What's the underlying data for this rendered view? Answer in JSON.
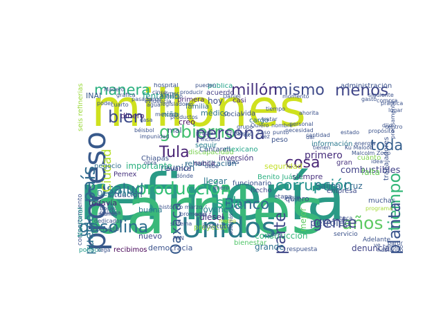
{
  "words": [
    {
      "text": "refinería",
      "color": "#2a9a86"
    },
    {
      "text": "barriles",
      "color": "#3ab87a"
    },
    {
      "text": "millones",
      "color": "#cfe11e"
    },
    {
      "text": "Unidos",
      "color": "#2b7a8a"
    },
    {
      "text": "proceso",
      "color": "#38598b"
    },
    {
      "text": "producción",
      "color": "#33bf75"
    },
    {
      "text": "gasolina",
      "color": "#2d6e8e"
    },
    {
      "text": "país",
      "color": "#2f6b8e"
    },
    {
      "text": "gobierno",
      "color": "#44bf70"
    },
    {
      "text": "persona",
      "color": "#414487"
    },
    {
      "text": "corrupción",
      "color": "#21908d"
    },
    {
      "text": "mismo",
      "color": "#3e4a89"
    },
    {
      "text": "menos",
      "color": "#404688"
    },
    {
      "text": "manera",
      "color": "#2ab07f"
    },
    {
      "text": "millón",
      "color": "#46327e"
    },
    {
      "text": "tiempo",
      "color": "#35b779"
    },
    {
      "text": "años",
      "color": "#5ec962"
    },
    {
      "text": "Banco",
      "color": "#31688e"
    },
    {
      "text": "gente",
      "color": "#404588"
    },
    {
      "text": "cosa",
      "color": "#482576"
    },
    {
      "text": "Tula",
      "color": "#482374"
    },
    {
      "text": "planta",
      "color": "#3a548c"
    },
    {
      "text": "salud",
      "color": "#2c728e"
    },
    {
      "text": "parte",
      "color": "#3f4788"
    },
    {
      "text": "bien",
      "color": "#3e4c8a"
    },
    {
      "text": "Ciudad",
      "color": "#b5de2b"
    },
    {
      "text": "Oaxaca",
      "color": "#375a8c"
    },
    {
      "text": "sólo",
      "color": "#22a884"
    },
    {
      "text": "toda",
      "color": "#355f8d"
    },
    {
      "text": "pueblo",
      "color": "#2c738e"
    },
    {
      "text": "petróleo",
      "color": "#3b528b"
    },
    {
      "text": "primero",
      "color": "#472d7b"
    },
    {
      "text": "fentanilo",
      "color": "#1f9e89"
    },
    {
      "text": "combustibles",
      "color": "#414287"
    },
    {
      "text": "reunión",
      "color": "#31668e"
    },
    {
      "text": "construcción",
      "color": "#35b779"
    },
    {
      "text": "Salina Cruz",
      "color": "#31688e"
    },
    {
      "text": "situación",
      "color": "#3b528b"
    },
    {
      "text": "todavía",
      "color": "#482878"
    },
    {
      "text": "importante",
      "color": "#2ab07f"
    },
    {
      "text": "Deer Park",
      "color": "#287c8e"
    },
    {
      "text": "niño",
      "color": "#26828e"
    },
    {
      "text": "creo",
      "color": "#471063"
    },
    {
      "text": "hoy",
      "color": "#3e4a89"
    },
    {
      "text": "médico",
      "color": "#2c728e"
    },
    {
      "text": "mal",
      "color": "#3b528b"
    },
    {
      "text": "dinero",
      "color": "#482475"
    },
    {
      "text": "Pemex",
      "color": "#46337e"
    },
    {
      "text": "INAI",
      "color": "#38598c"
    },
    {
      "text": "discapacidad",
      "color": "#7ad151"
    },
    {
      "text": "jóvenes",
      "color": "#26818e"
    },
    {
      "text": "diésel",
      "color": "#472c7a"
    },
    {
      "text": "proyecto",
      "color": "#8fd744"
    },
    {
      "text": "democracia",
      "color": "#3b528b"
    },
    {
      "text": "buena",
      "color": "#2a788e"
    },
    {
      "text": "nuevo",
      "color": "#3e4989"
    },
    {
      "text": "recibimos",
      "color": "#440154"
    },
    {
      "text": "político",
      "color": "#1f9a8a"
    },
    {
      "text": "denuncia",
      "color": "#414487"
    },
    {
      "text": "grande",
      "color": "#2d708e"
    },
    {
      "text": "mejor",
      "color": "#5ec962"
    },
    {
      "text": "quiero",
      "color": "#3b528b"
    },
    {
      "text": "seguridad",
      "color": "#c2df23"
    },
    {
      "text": "siempre",
      "color": "#472f7d"
    },
    {
      "text": "Benito Juárez",
      "color": "#29af7f"
    },
    {
      "text": "rehabilitación",
      "color": "#2e6d8e"
    },
    {
      "text": "inversión",
      "color": "#463480"
    },
    {
      "text": "avance",
      "color": "#433e85"
    },
    {
      "text": "llegar",
      "color": "#2a768e"
    },
    {
      "text": "hecho",
      "color": "#3f4788"
    },
    {
      "text": "seis refinerías",
      "color": "#9bd93c"
    },
    {
      "text": "empresa",
      "color": "#3e4a89"
    },
    {
      "text": "trabajadores",
      "color": "#3b528b"
    },
    {
      "text": "falta",
      "color": "#6ccd5a"
    },
    {
      "text": "Chiapas",
      "color": "#3b528b"
    },
    {
      "text": "familia",
      "color": "#31688e"
    },
    {
      "text": "primera",
      "color": "#482677"
    },
    {
      "text": "vida",
      "color": "#3b528b"
    },
    {
      "text": "casi",
      "color": "#482878"
    },
    {
      "text": "social",
      "color": "#3b528b"
    },
    {
      "text": "cargo",
      "color": "#2d708e"
    },
    {
      "text": "acuerdo",
      "color": "#433d84"
    },
    {
      "text": "pública",
      "color": "#1fa188"
    },
    {
      "text": "hospital",
      "color": "#3b528b"
    },
    {
      "text": "pueden",
      "color": "#3b528b"
    },
    {
      "text": "información",
      "color": "#2a788e"
    },
    {
      "text": "peso",
      "color": "#3b528b"
    },
    {
      "text": "mexicano",
      "color": "#20a486"
    },
    {
      "text": "Cantarell",
      "color": "#3b528b"
    },
    {
      "text": "seguir",
      "color": "#27808e"
    },
    {
      "text": "nunca",
      "color": "#482979"
    },
    {
      "text": "gas",
      "color": "#3b528b"
    },
    {
      "text": "gran",
      "color": "#46327e"
    },
    {
      "text": "cuánto",
      "color": "#7fd34e"
    },
    {
      "text": "funcionario",
      "color": "#3b528b"
    },
    {
      "text": "instituto",
      "color": "#3b528b"
    },
    {
      "text": "bienestar",
      "color": "#52c569"
    },
    {
      "text": "respuesta",
      "color": "#3b528b"
    },
    {
      "text": "servicio",
      "color": "#3b528b"
    },
    {
      "text": "Adelante",
      "color": "#3b528b"
    },
    {
      "text": "muchas",
      "color": "#3b528b"
    },
    {
      "text": "negocio",
      "color": "#2e6e8e"
    },
    {
      "text": "corrupto",
      "color": "#3b528b"
    },
    {
      "text": "comportamiento",
      "color": "#3b528b"
    },
    {
      "text": "Nacional",
      "color": "#1f968b"
    },
    {
      "text": "administración",
      "color": "#3b528b"
    },
    {
      "text": "dijo",
      "color": "#3b528b"
    },
    {
      "text": "propósito",
      "color": "#3b528b"
    },
    {
      "text": "centro",
      "color": "#3b528b"
    },
    {
      "text": "idea",
      "color": "#3b528b"
    },
    {
      "text": "programa",
      "color": "#a5db36"
    },
    {
      "text": "partir",
      "color": "#3b528b"
    },
    {
      "text": "cambio",
      "color": "#3b528b"
    },
    {
      "text": "hablando",
      "color": "#3b528b"
    },
    {
      "text": "precisamente",
      "color": "#3b528b"
    },
    {
      "text": "dar",
      "color": "#3b528b"
    },
    {
      "text": "producir",
      "color": "#3b528b"
    },
    {
      "text": "tarde",
      "color": "#3b528b"
    },
    {
      "text": "béisbol",
      "color": "#3b528b"
    },
    {
      "text": "crudo",
      "color": "#3b528b"
    },
    {
      "text": "tratar",
      "color": "#3b528b"
    },
    {
      "text": "Madero",
      "color": "#3b528b"
    },
    {
      "text": "poder",
      "color": "#3b528b"
    },
    {
      "text": "casa",
      "color": "#3b528b"
    },
    {
      "text": "punto",
      "color": "#3b528b"
    },
    {
      "text": "Malcolm Zoop",
      "color": "#3b528b"
    },
    {
      "text": "Ku Maloob",
      "color": "#3b528b"
    },
    {
      "text": "energía",
      "color": "#3b528b"
    },
    {
      "text": "ahorita",
      "color": "#3b528b"
    },
    {
      "text": "caso",
      "color": "#3b528b"
    },
    {
      "text": "etapa",
      "color": "#3b528b"
    },
    {
      "text": "medio",
      "color": "#bddf26"
    },
    {
      "text": "promedio",
      "color": "#3b528b"
    },
    {
      "text": "aquí",
      "color": "#3b528b"
    },
    {
      "text": "debe",
      "color": "#3b528b"
    },
    {
      "text": "incluso",
      "color": "#3b528b"
    },
    {
      "text": "PAN",
      "color": "#3b528b"
    },
    {
      "text": "sistema",
      "color": "#3b528b"
    },
    {
      "text": "histórico marzo",
      "color": "#3b528b"
    },
    {
      "text": "dónde",
      "color": "#3b528b"
    },
    {
      "text": "pasado",
      "color": "#3b528b"
    },
    {
      "text": "sigue",
      "color": "#3b528b"
    },
    {
      "text": "además",
      "color": "#3b528b"
    },
    {
      "text": "mundo",
      "color": "#3b528b"
    },
    {
      "text": "dedicados",
      "color": "#3b528b"
    },
    {
      "text": "legisladores",
      "color": "#3b528b"
    },
    {
      "text": "Bocas",
      "color": "#3b528b"
    },
    {
      "text": "palabra",
      "color": "#3b528b"
    },
    {
      "text": "llega",
      "color": "#3b528b"
    },
    {
      "text": "lugar",
      "color": "#3b528b"
    },
    {
      "text": "beca",
      "color": "#3b528b"
    },
    {
      "text": "viene",
      "color": "#3b528b"
    },
    {
      "text": "impunidad",
      "color": "#3b528b"
    },
    {
      "text": "obra",
      "color": "#3b528b"
    },
    {
      "text": "cinco",
      "color": "#3b528b"
    },
    {
      "text": "primer",
      "color": "#3b528b"
    },
    {
      "text": "ve",
      "color": "#3b528b"
    },
    {
      "text": "campo",
      "color": "#3b528b"
    },
    {
      "text": "tienen",
      "color": "#3b528b"
    },
    {
      "text": "enero",
      "color": "#3b528b"
    },
    {
      "text": "agua",
      "color": "#3b528b"
    },
    {
      "text": "mercado",
      "color": "#3b528b"
    },
    {
      "text": "práctica",
      "color": "#3b528b"
    },
    {
      "text": "cantidad",
      "color": "#3b528b"
    },
    {
      "text": "personal",
      "color": "#3b528b"
    },
    {
      "text": "momento",
      "color": "#3b528b"
    },
    {
      "text": "Daniel",
      "color": "#3b528b"
    },
    {
      "text": "necesidad",
      "color": "#3b528b"
    },
    {
      "text": "ejemplo",
      "color": "#3b528b"
    },
    {
      "text": "cuarto",
      "color": "#3b528b"
    },
    {
      "text": "gráfica",
      "color": "#3b528b"
    },
    {
      "text": "siguiente",
      "color": "#3b528b"
    },
    {
      "text": "gasto",
      "color": "#3b528b"
    },
    {
      "text": "compra",
      "color": "#3b528b"
    },
    {
      "text": "estado",
      "color": "#3b528b"
    },
    {
      "text": "ex",
      "color": "#3b528b"
    },
    {
      "text": "vez",
      "color": "#3b528b"
    },
    {
      "text": "nombre",
      "color": "#3b528b"
    },
    {
      "text": "grupo",
      "color": "#3b528b"
    },
    {
      "text": "Quiero",
      "color": "#3b528b"
    },
    {
      "text": "tiempo",
      "color": "#3b528b"
    },
    {
      "text": "evidencia",
      "color": "#3b528b"
    },
    {
      "text": "productos",
      "color": "#3b528b"
    },
    {
      "text": "propia",
      "color": "#3b528b"
    }
  ]
}
